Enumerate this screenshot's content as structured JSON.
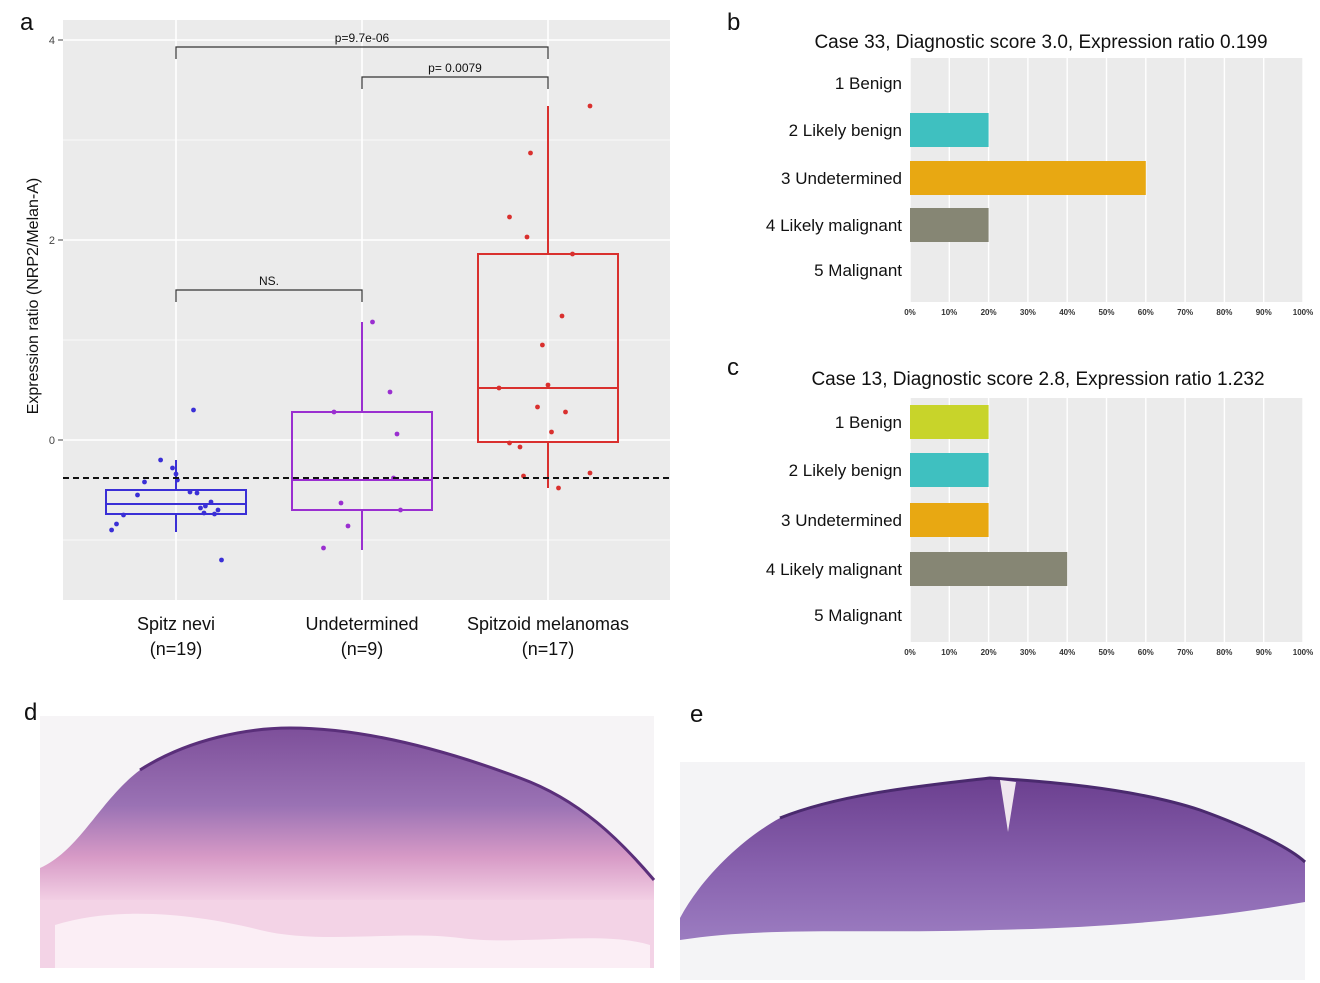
{
  "panel_letters": {
    "a": "a",
    "b": "b",
    "c": "c",
    "d": "d",
    "e": "e"
  },
  "colors": {
    "spitz": "#3a2fd6",
    "undetermined": "#9a2fd0",
    "melanoma": "#d9302e",
    "benign": "#c8d42a",
    "likely_benign": "#3fc0c0",
    "undet_bar": "#e8a812",
    "likely_malignant": "#868674"
  },
  "chart_data": [
    {
      "type": "box",
      "ylabel": "Expression ratio (NRP2/Melan-A)",
      "ylim": [
        -1.6,
        4.2
      ],
      "yticks": [
        "0",
        "2",
        "4"
      ],
      "reference_line": -0.38,
      "categories": [
        {
          "name": "Spitz nevi",
          "n": "(n=19)"
        },
        {
          "name": "Undetermined",
          "n": "(n=9)"
        },
        {
          "name": "Spitzoid melanomas",
          "n": "(n=17)"
        }
      ],
      "boxes": [
        {
          "min": -0.92,
          "q1": -0.74,
          "median": -0.64,
          "q3": -0.5,
          "max": -0.2,
          "points": [
            [
              -0.22,
              -0.2
            ],
            [
              -0.55,
              -0.55
            ],
            [
              -0.45,
              -0.42
            ],
            [
              -0.85,
              -0.84
            ],
            [
              -0.92,
              -0.9
            ],
            [
              -0.75,
              -0.75
            ],
            [
              -0.05,
              -0.28
            ],
            [
              0.0,
              -0.34
            ],
            [
              0.02,
              -0.4
            ],
            [
              0.25,
              0.3
            ],
            [
              0.2,
              -0.52
            ],
            [
              0.3,
              -0.53
            ],
            [
              0.35,
              -0.68
            ],
            [
              0.4,
              -0.73
            ],
            [
              0.5,
              -0.62
            ],
            [
              0.55,
              -0.74
            ],
            [
              0.6,
              -0.7
            ],
            [
              0.42,
              -0.66
            ],
            [
              0.65,
              -1.2
            ]
          ]
        },
        {
          "min": -1.1,
          "q1": -0.7,
          "median": -0.4,
          "q3": 0.28,
          "max": 1.18,
          "points": [
            [
              -0.55,
              -1.08
            ],
            [
              -0.4,
              0.28
            ],
            [
              -0.3,
              -0.63
            ],
            [
              -0.2,
              -0.86
            ],
            [
              0.15,
              1.18
            ],
            [
              0.4,
              0.48
            ],
            [
              0.5,
              0.06
            ],
            [
              0.45,
              -0.38
            ],
            [
              0.55,
              -0.7
            ]
          ]
        },
        {
          "min": -0.48,
          "q1": -0.02,
          "median": 0.52,
          "q3": 1.86,
          "max": 3.34,
          "points": [
            [
              -0.7,
              0.52
            ],
            [
              -0.55,
              -0.03
            ],
            [
              -0.4,
              -0.07
            ],
            [
              -0.35,
              -0.36
            ],
            [
              -0.3,
              2.03
            ],
            [
              -0.25,
              2.87
            ],
            [
              -0.55,
              2.23
            ],
            [
              -0.08,
              0.95
            ],
            [
              0.0,
              0.55
            ],
            [
              0.05,
              0.08
            ],
            [
              -0.15,
              0.33
            ],
            [
              0.15,
              -0.48
            ],
            [
              0.2,
              1.24
            ],
            [
              0.25,
              0.28
            ],
            [
              0.35,
              1.86
            ],
            [
              0.6,
              3.34
            ],
            [
              0.6,
              -0.33
            ]
          ]
        }
      ],
      "comparisons": [
        {
          "label": "p=9.7e-06",
          "from": 0,
          "to": 2,
          "y": 3.93
        },
        {
          "label": "p= 0.0079",
          "from": 1,
          "to": 2,
          "y": 3.63
        },
        {
          "label": "NS.",
          "from": 0,
          "to": 1,
          "y": 1.5
        }
      ]
    },
    {
      "type": "bar",
      "orientation": "horizontal",
      "title": "Case 33, Diagnostic score 3.0, Expression ratio 0.199",
      "categories": [
        "1 Benign",
        "2 Likely benign",
        "3 Undetermined",
        "4 Likely malignant",
        "5 Malignant"
      ],
      "values": [
        0,
        20,
        60,
        20,
        0
      ],
      "xticks": [
        "0%",
        "10%",
        "20%",
        "30%",
        "40%",
        "50%",
        "60%",
        "70%",
        "80%",
        "90%",
        "100%"
      ],
      "xlim": [
        0,
        100
      ]
    },
    {
      "type": "bar",
      "orientation": "horizontal",
      "title": "Case 13, Diagnostic score 2.8, Expression ratio 1.232",
      "categories": [
        "1 Benign",
        "2 Likely benign",
        "3 Undetermined",
        "4 Likely malignant",
        "5 Malignant"
      ],
      "values": [
        20,
        20,
        20,
        40,
        0
      ],
      "xticks": [
        "0%",
        "10%",
        "20%",
        "30%",
        "40%",
        "50%",
        "60%",
        "70%",
        "80%",
        "90%",
        "100%"
      ],
      "xlim": [
        0,
        100
      ]
    }
  ]
}
